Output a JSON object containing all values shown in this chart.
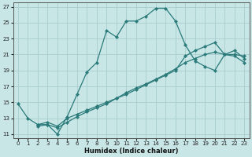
{
  "xlabel": "Humidex (Indice chaleur)",
  "xlim": [
    -0.5,
    23.5
  ],
  "ylim": [
    10.5,
    27.5
  ],
  "xticks": [
    0,
    1,
    2,
    3,
    4,
    5,
    6,
    7,
    8,
    9,
    10,
    11,
    12,
    13,
    14,
    15,
    16,
    17,
    18,
    19,
    20,
    21,
    22,
    23
  ],
  "yticks": [
    11,
    13,
    15,
    17,
    19,
    21,
    23,
    25,
    27
  ],
  "bg_color": "#c8e6e6",
  "grid_color": "#a8cccc",
  "line_color": "#2a7a7a",
  "line1_x": [
    0,
    1,
    2,
    3,
    4,
    5,
    6,
    7,
    8,
    9,
    10,
    11,
    12,
    13,
    14,
    15,
    16,
    17,
    18,
    19,
    20,
    21,
    22,
    23
  ],
  "line1_y": [
    14.8,
    13.0,
    12.2,
    12.2,
    11.0,
    13.2,
    16.0,
    18.8,
    20.0,
    24.0,
    23.2,
    25.2,
    25.2,
    25.8,
    26.8,
    26.8,
    25.2,
    22.2,
    20.2,
    19.5,
    19.0,
    21.0,
    20.8,
    20.0
  ],
  "line2_x": [
    2,
    3,
    4,
    5,
    6,
    7,
    8,
    9,
    10,
    11,
    12,
    13,
    14,
    15,
    16,
    17,
    18,
    19,
    20,
    21,
    22,
    23
  ],
  "line2_y": [
    12.2,
    12.5,
    12.0,
    13.0,
    13.5,
    14.0,
    14.5,
    15.0,
    15.5,
    16.2,
    16.8,
    17.3,
    17.9,
    18.5,
    19.2,
    20.0,
    20.5,
    21.0,
    21.3,
    21.0,
    21.0,
    20.8
  ],
  "line3_x": [
    2,
    3,
    4,
    5,
    6,
    7,
    8,
    9,
    10,
    11,
    12,
    13,
    14,
    15,
    16,
    17,
    18,
    19,
    20,
    21,
    22,
    23
  ],
  "line3_y": [
    12.0,
    12.2,
    11.8,
    12.5,
    13.2,
    13.8,
    14.3,
    14.8,
    15.5,
    16.0,
    16.6,
    17.2,
    17.8,
    18.4,
    19.0,
    20.8,
    21.5,
    22.0,
    22.5,
    21.0,
    21.5,
    20.5
  ]
}
